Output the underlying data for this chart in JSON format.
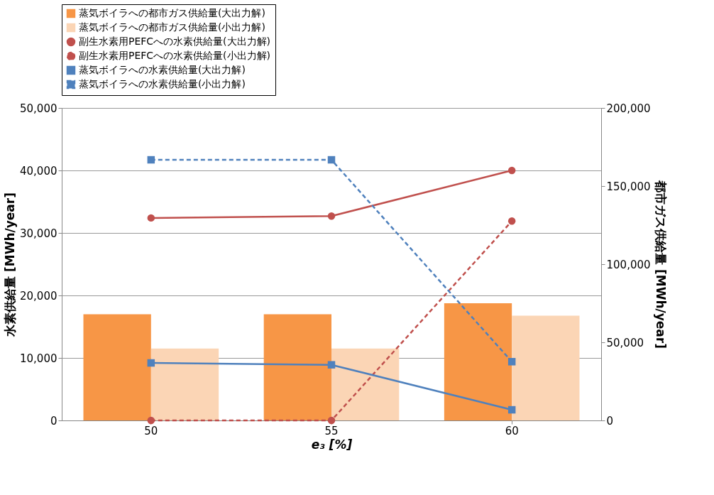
{
  "chart_data": {
    "type": "bar",
    "categories": [
      "50",
      "55",
      "60"
    ],
    "xlabel": "e₃ [%]",
    "ylabel": "水素供給量 [MWh/year]",
    "y2label": "都市ガス供給量 [MWh/year]",
    "ylim": [
      0,
      50000
    ],
    "yticks": [
      0,
      {
        "value": 10000,
        "label": "10,000"
      },
      {
        "value": 20000,
        "label": "20,000"
      },
      {
        "value": 30000,
        "label": "30,000"
      },
      {
        "value": 40000,
        "label": "40,000"
      },
      {
        "value": 50000,
        "label": "50,000"
      }
    ],
    "y2lim": [
      0,
      200000
    ],
    "y2ticks": [
      0,
      {
        "value": 50000,
        "label": "50,000"
      },
      {
        "value": 100000,
        "label": "100,000"
      },
      {
        "value": 150000,
        "label": "150,000"
      },
      {
        "value": 200000,
        "label": "200,000"
      }
    ],
    "grid": "y",
    "legend": "top",
    "series": [
      {
        "name": "蒸気ボイラへの都市ガス供給量(大出力解)",
        "axis": "y2",
        "color": "#f79646",
        "values": [
          68000,
          68000,
          75000
        ]
      },
      {
        "name": "蒸気ボイラへの都市ガス供給量(小出力解)",
        "axis": "y2",
        "color": "#fbd5b5",
        "values": [
          46000,
          46000,
          67000
        ]
      },
      {
        "name": "副生水素用PEFCへの水素供給量(大出力解)",
        "type": "line",
        "color": "#c0504d",
        "marker": "circle",
        "line_style": "solid",
        "values": [
          32400,
          32700,
          40000
        ]
      },
      {
        "name": "副生水素用PEFCへの水素供給量(小出力解)",
        "type": "line",
        "color": "#c0504d",
        "marker": "circle",
        "line_style": "dashed",
        "values": [
          0,
          0,
          31900
        ]
      },
      {
        "name": "蒸気ボイラへの水素供給量(大出力解)",
        "type": "line",
        "color": "#4f81bd",
        "marker": "square",
        "line_style": "solid",
        "values": [
          9200,
          8900,
          1700
        ]
      },
      {
        "name": "蒸気ボイラへの水素供給量(小出力解)",
        "type": "line",
        "color": "#4f81bd",
        "marker": "square",
        "line_style": "dashed",
        "values": [
          41700,
          41700,
          9400
        ]
      }
    ]
  }
}
